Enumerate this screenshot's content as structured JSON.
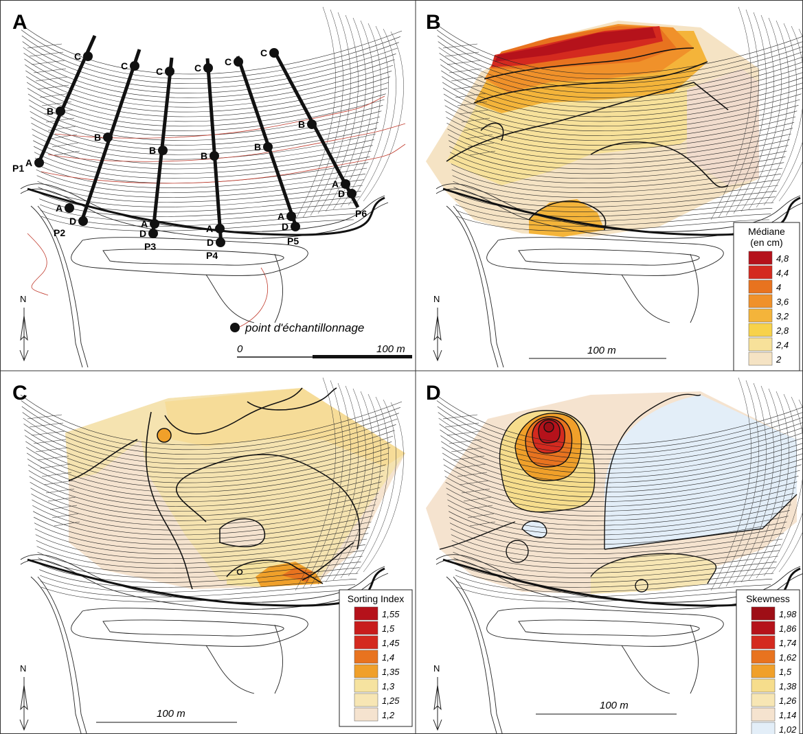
{
  "panels": [
    {
      "letter": "A"
    },
    {
      "letter": "B"
    },
    {
      "letter": "C"
    },
    {
      "letter": "D"
    }
  ],
  "north": "N",
  "panel_a": {
    "profiles": [
      {
        "name": "P1",
        "points": [
          "A",
          "B",
          "C"
        ]
      },
      {
        "name": "P2",
        "points": [
          "D",
          "A",
          "B",
          "C"
        ]
      },
      {
        "name": "P3",
        "points": [
          "D",
          "A",
          "B",
          "C"
        ]
      },
      {
        "name": "P4",
        "points": [
          "D",
          "A",
          "B",
          "C"
        ]
      },
      {
        "name": "P5",
        "points": [
          "D",
          "A",
          "B",
          "C"
        ]
      },
      {
        "name": "P6",
        "points": [
          "D",
          "A",
          "B",
          "C"
        ]
      }
    ],
    "legend_label": "point d'échantillonnage",
    "scale": {
      "start": "0",
      "end": "100 m"
    }
  },
  "panel_b": {
    "scale": "100 m",
    "legend": {
      "title_line1": "Médiane",
      "title_line2": "(en cm)",
      "classes": [
        {
          "label": "4,8",
          "color": "#b5121b"
        },
        {
          "label": "4,4",
          "color": "#d42a1f"
        },
        {
          "label": "4",
          "color": "#e8731f"
        },
        {
          "label": "3,6",
          "color": "#f0912a"
        },
        {
          "label": "3,2",
          "color": "#f4b43a"
        },
        {
          "label": "2,8",
          "color": "#f7d24a"
        },
        {
          "label": "2,4",
          "color": "#f7e19a"
        },
        {
          "label": "2",
          "color": "#f5e3c4"
        }
      ]
    }
  },
  "panel_c": {
    "scale": "100 m",
    "legend": {
      "title": "Sorting Index",
      "classes": [
        {
          "label": "1,55",
          "color": "#b5121b"
        },
        {
          "label": "1,5",
          "color": "#c81c1c"
        },
        {
          "label": "1,45",
          "color": "#d42a1f"
        },
        {
          "label": "1,4",
          "color": "#e8731f"
        },
        {
          "label": "1,35",
          "color": "#f0a02a"
        },
        {
          "label": "1,3",
          "color": "#f6e3a0"
        },
        {
          "label": "1,25",
          "color": "#f7e6b4"
        },
        {
          "label": "1,2",
          "color": "#f5e3cf"
        }
      ]
    }
  },
  "panel_d": {
    "scale": "100 m",
    "legend": {
      "title": "Skewness",
      "classes": [
        {
          "label": "1,98",
          "color": "#9e0e16"
        },
        {
          "label": "1,86",
          "color": "#b5121b"
        },
        {
          "label": "1,74",
          "color": "#d42a1f"
        },
        {
          "label": "1,62",
          "color": "#e8731f"
        },
        {
          "label": "1,5",
          "color": "#f0a02a"
        },
        {
          "label": "1,38",
          "color": "#f6dd8c"
        },
        {
          "label": "1,26",
          "color": "#f7e6b4"
        },
        {
          "label": "1,14",
          "color": "#f5e3cf"
        },
        {
          "label": "1,02",
          "color": "#e3eef8"
        }
      ]
    }
  }
}
